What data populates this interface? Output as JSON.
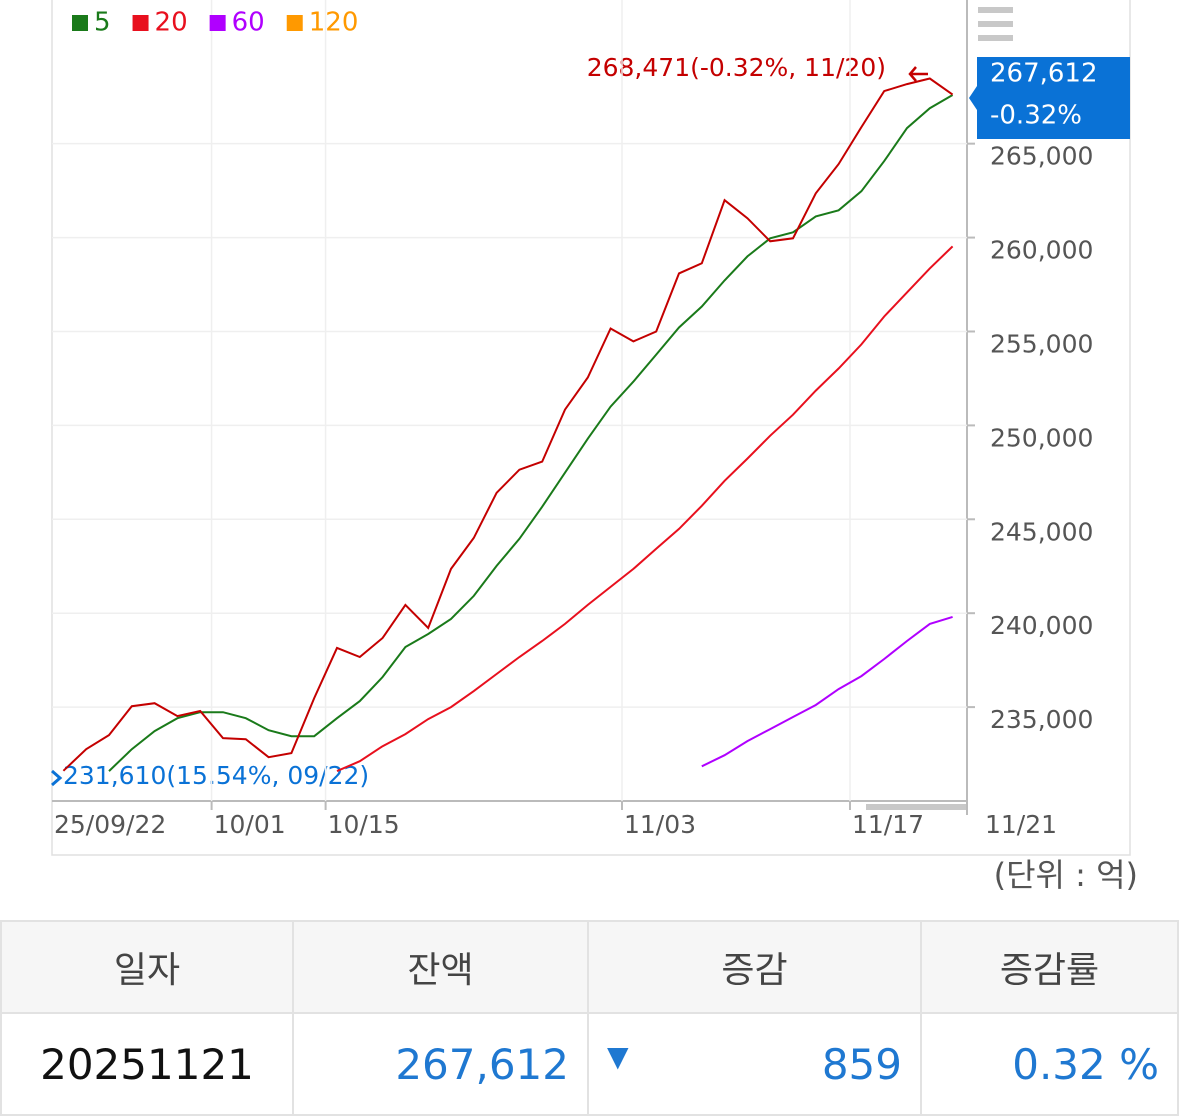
{
  "chart_data": {
    "type": "line",
    "categories": [
      "25/09/22",
      null,
      null,
      null,
      null,
      null,
      null,
      "10/01",
      null,
      null,
      null,
      null,
      "10/15",
      null,
      null,
      null,
      null,
      null,
      null,
      null,
      null,
      null,
      null,
      null,
      null,
      "11/03",
      null,
      null,
      null,
      null,
      null,
      null,
      null,
      null,
      null,
      "11/17",
      null,
      null,
      null,
      "11/21"
    ],
    "series": [
      {
        "color": "#c40000",
        "values": [
          231610,
          232760,
          233510,
          235050,
          235210,
          234520,
          234790,
          233350,
          233290,
          232330,
          232550,
          235480,
          238150,
          237670,
          238680,
          240440,
          239210,
          242360,
          244010,
          246410,
          247640,
          248070,
          250840,
          252550,
          255160,
          254470,
          255000,
          258090,
          258630,
          261990,
          261030,
          259800,
          259960,
          262360,
          263910,
          265880,
          267800,
          268170,
          268471,
          267612
        ]
      },
      {
        "name": "5",
        "color": "#1a7a1a",
        "values": [
          null,
          null,
          231590,
          232760,
          233720,
          234410,
          234730,
          234730,
          234410,
          233770,
          233450,
          233450,
          234410,
          235320,
          236600,
          238200,
          238890,
          239690,
          240920,
          242520,
          243960,
          245670,
          247480,
          249290,
          251000,
          252330,
          253770,
          255210,
          256330,
          257720,
          259000,
          259960,
          260280,
          261130,
          261450,
          262470,
          264070,
          265830,
          266890,
          267590
        ]
      },
      {
        "name": "20",
        "color": "#e8101e",
        "values": [
          null,
          null,
          null,
          null,
          null,
          null,
          null,
          null,
          null,
          null,
          null,
          null,
          231590,
          232120,
          232920,
          233560,
          234360,
          235000,
          235850,
          236760,
          237670,
          238520,
          239430,
          240440,
          241400,
          242360,
          243430,
          244490,
          245720,
          247050,
          248230,
          249450,
          250570,
          251850,
          253030,
          254310,
          255800,
          257080,
          258360,
          259530
        ]
      },
      {
        "name": "60",
        "color": "#b000ff",
        "values": [
          null,
          null,
          null,
          null,
          null,
          null,
          null,
          null,
          null,
          null,
          null,
          null,
          null,
          null,
          null,
          null,
          null,
          null,
          null,
          null,
          null,
          null,
          null,
          null,
          null,
          null,
          null,
          null,
          231850,
          232440,
          233190,
          233830,
          234470,
          235110,
          235960,
          236650,
          237560,
          238520,
          239430,
          239800
        ]
      },
      {
        "name": "120",
        "color": "#ff9900",
        "values": [
          null,
          null,
          null,
          null,
          null,
          null,
          null,
          null,
          null,
          null,
          null,
          null,
          null,
          null,
          null,
          null,
          null,
          null,
          null,
          null,
          null,
          null,
          null,
          null,
          null,
          null,
          null,
          null,
          null,
          null,
          null,
          null,
          null,
          null,
          null,
          null,
          null,
          null,
          null,
          null
        ]
      }
    ],
    "ylim": [
      230000,
      272650
    ],
    "yticks": [
      {
        "value": 235000,
        "label": "235,000"
      },
      {
        "value": 240000,
        "label": "240,000"
      },
      {
        "value": 245000,
        "label": "245,000"
      },
      {
        "value": 250000,
        "label": "250,000"
      },
      {
        "value": 255000,
        "label": "255,000"
      },
      {
        "value": 260000,
        "label": "260,000"
      },
      {
        "value": 265000,
        "label": "265,000"
      }
    ],
    "grid": true,
    "max_annotation": "268,471(-0.32%, 11/20)",
    "min_annotation": "231,610(15.54%, 09/22)",
    "last_tag": {
      "value": "267,612",
      "change": "-0.32%"
    },
    "unit": "(단위 : 억)"
  },
  "table": {
    "headers": [
      "일자",
      "잔액",
      "증감",
      "증감률"
    ],
    "rows": [
      [
        "20251121",
        "267,612",
        "▼",
        "859",
        "0.32 %"
      ]
    ]
  }
}
